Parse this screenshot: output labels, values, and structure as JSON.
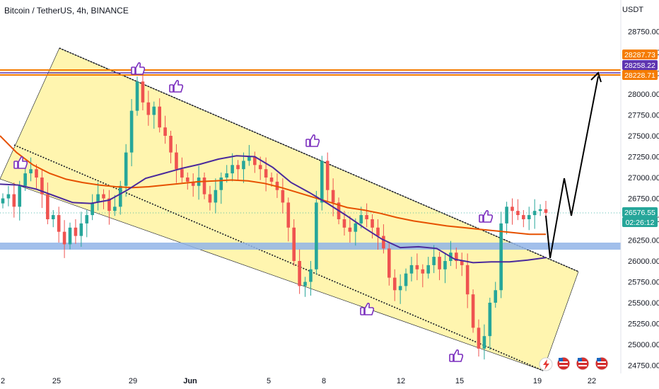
{
  "header": {
    "title": "Bitcoin / TetherUS, 4h, BINANCE",
    "currency": "USDT"
  },
  "colors": {
    "background": "#ffffff",
    "up_candle": "#26a69a",
    "down_candle": "#ef5350",
    "channel_fill": "#fff3a1",
    "ma_orange": "#e65100",
    "ma_purple": "#4a2a9c",
    "support_band": "#90b4e8",
    "resistance_orange": "#f57c00",
    "resistance_purple": "#5e35b1",
    "price_label": "#26a69a",
    "hand_icon": "#7b2fbe"
  },
  "price_labels": {
    "level_top": "28287.73",
    "level_mid": "28258.22",
    "level_low": "28228.71",
    "current_price": "26576.55",
    "countdown": "02:26:12"
  },
  "icons": [
    "thumbs-up-icon",
    "lightning-icon",
    "us-flag-icon"
  ],
  "chart_data": {
    "type": "candlestick",
    "symbol": "Bitcoin / TetherUS",
    "interval": "4h",
    "exchange": "BINANCE",
    "y_unit": "USDT",
    "ylim": [
      24700,
      28950
    ],
    "y_ticks": [
      24750,
      25000,
      25250,
      25500,
      25750,
      26000,
      26250,
      26500,
      26750,
      27000,
      27250,
      27500,
      27750,
      28000,
      28250,
      28500,
      28750
    ],
    "y_tick_labels": [
      "24750.00",
      "25000.00",
      "25250.00",
      "25500.00",
      "25750.00",
      "26000.00",
      "26250.00",
      "26500.00",
      "26750.00",
      "27000.00",
      "27250.00",
      "27500.00",
      "27750.00",
      "28000.00",
      "28250.00",
      "28500.00",
      "28750.00"
    ],
    "x_tick_labels": [
      "2",
      "25",
      "29",
      "Jun",
      "5",
      "8",
      "12",
      "15",
      "19",
      "22"
    ],
    "closes": [
      26750,
      26800,
      26650,
      26900,
      27050,
      27100,
      27000,
      26800,
      26500,
      26550,
      26350,
      26200,
      26400,
      26300,
      26450,
      26550,
      26700,
      26800,
      26750,
      26600,
      26650,
      26900,
      27300,
      27800,
      28150,
      27900,
      27750,
      27850,
      27600,
      27500,
      27300,
      27100,
      27000,
      26950,
      26900,
      27000,
      26800,
      26700,
      26850,
      27000,
      27050,
      27150,
      27100,
      27200,
      27250,
      27150,
      27100,
      27000,
      26950,
      26850,
      26700,
      26400,
      26000,
      25700,
      25750,
      25900,
      26700,
      27200,
      26850,
      26700,
      26500,
      26400,
      26350,
      26450,
      26550,
      26500,
      26400,
      26300,
      26150,
      25800,
      25650,
      25700,
      25850,
      25950,
      25900,
      25850,
      25950,
      26050,
      25900,
      26000,
      26100,
      26000,
      25950,
      25600,
      25200,
      24950,
      25100,
      25500,
      25650,
      26450,
      26650,
      26600,
      26550,
      26500,
      26550,
      26600,
      26620,
      26576.55
    ],
    "ma_orange": [
      27500,
      27300,
      27150,
      27050,
      26980,
      26940,
      26910,
      26890,
      26880,
      26890,
      26910,
      26930,
      26950,
      26960,
      26970,
      26960,
      26930,
      26880,
      26820,
      26760,
      26700,
      26640,
      26610,
      26570,
      26520,
      26480,
      26450,
      26420,
      26400,
      26380,
      26360,
      26340,
      26320,
      26320
    ],
    "ma_purple": [
      26920,
      26910,
      26860,
      26780,
      26700,
      26690,
      26730,
      26850,
      26990,
      27050,
      27110,
      27160,
      27220,
      27260,
      27250,
      27120,
      26940,
      26820,
      26690,
      26550,
      26400,
      26260,
      26160,
      26170,
      26150,
      26020,
      25980,
      25990,
      25990,
      26010,
      26040
    ]
  }
}
